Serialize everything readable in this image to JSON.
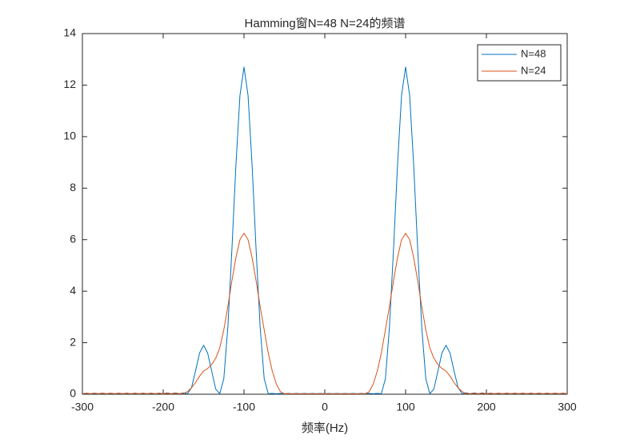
{
  "chart_data": {
    "type": "line",
    "title": "Hamming窗N=48 N=24的频谱",
    "x_label": "频率(Hz)",
    "x": [
      -300,
      -295,
      -290,
      -285,
      -280,
      -275,
      -270,
      -265,
      -260,
      -255,
      -250,
      -245,
      -240,
      -235,
      -230,
      -225,
      -220,
      -215,
      -210,
      -205,
      -200,
      -195,
      -190,
      -185,
      -180,
      -175,
      -170,
      -165,
      -160,
      -155,
      -150,
      -145,
      -140,
      -135,
      -130,
      -125,
      -120,
      -115,
      -110,
      -105,
      -100,
      -95,
      -90,
      -85,
      -80,
      -75,
      -70,
      -65,
      -60,
      -55,
      -50,
      -45,
      -40,
      -35,
      -30,
      -25,
      -20,
      -15,
      -10,
      -5,
      0,
      5,
      10,
      15,
      20,
      25,
      30,
      35,
      40,
      45,
      50,
      55,
      60,
      65,
      70,
      75,
      80,
      85,
      90,
      95,
      100,
      105,
      110,
      115,
      120,
      125,
      130,
      135,
      140,
      145,
      150,
      155,
      160,
      165,
      170,
      175,
      180,
      185,
      190,
      195,
      200,
      205,
      210,
      215,
      220,
      225,
      230,
      235,
      240,
      245,
      250,
      255,
      260,
      265,
      270,
      275,
      280,
      285,
      290,
      295,
      300
    ],
    "series": [
      {
        "name": "N=48",
        "color": "#0072BD",
        "values": [
          0.02,
          0.04,
          0.02,
          0.04,
          0.02,
          0.04,
          0.02,
          0.04,
          0.02,
          0.04,
          0.02,
          0.04,
          0.02,
          0.04,
          0.02,
          0.04,
          0.02,
          0.04,
          0.02,
          0.04,
          0.02,
          0.05,
          0.02,
          0.05,
          0.02,
          0.05,
          0.02,
          0.25,
          0.9,
          1.6,
          1.9,
          1.6,
          0.9,
          0.2,
          0.02,
          0.6,
          2.6,
          5.6,
          8.9,
          11.6,
          12.7,
          11.6,
          8.9,
          5.6,
          2.6,
          0.6,
          0.02,
          0.03,
          0.02,
          0.03,
          0.02,
          0.03,
          0.02,
          0.03,
          0.02,
          0.03,
          0.02,
          0.03,
          0.02,
          0.03,
          0.02,
          0.03,
          0.02,
          0.03,
          0.02,
          0.03,
          0.02,
          0.03,
          0.02,
          0.03,
          0.02,
          0.03,
          0.02,
          0.03,
          0.02,
          0.6,
          2.6,
          5.6,
          8.9,
          11.6,
          12.7,
          11.6,
          8.9,
          5.6,
          2.6,
          0.6,
          0.02,
          0.2,
          0.9,
          1.6,
          1.9,
          1.6,
          0.9,
          0.25,
          0.02,
          0.05,
          0.02,
          0.05,
          0.02,
          0.05,
          0.02,
          0.04,
          0.02,
          0.04,
          0.02,
          0.04,
          0.02,
          0.04,
          0.02,
          0.04,
          0.02,
          0.04,
          0.02,
          0.04,
          0.02,
          0.04,
          0.02,
          0.04,
          0.02,
          0.04,
          0.02
        ]
      },
      {
        "name": "N=24",
        "color": "#D95319",
        "values": [
          0.02,
          0.04,
          0.02,
          0.04,
          0.02,
          0.04,
          0.02,
          0.04,
          0.02,
          0.04,
          0.02,
          0.04,
          0.02,
          0.04,
          0.02,
          0.04,
          0.02,
          0.04,
          0.02,
          0.04,
          0.02,
          0.04,
          0.02,
          0.04,
          0.02,
          0.03,
          0.1,
          0.25,
          0.45,
          0.7,
          0.9,
          1.0,
          1.15,
          1.4,
          1.8,
          2.5,
          3.4,
          4.4,
          5.3,
          6.0,
          6.25,
          6.0,
          5.3,
          4.4,
          3.4,
          2.5,
          1.6,
          0.9,
          0.4,
          0.1,
          0.02,
          0.02,
          0.02,
          0.02,
          0.02,
          0.02,
          0.02,
          0.02,
          0.02,
          0.02,
          0.02,
          0.02,
          0.02,
          0.02,
          0.02,
          0.02,
          0.02,
          0.02,
          0.02,
          0.02,
          0.02,
          0.1,
          0.4,
          0.9,
          1.6,
          2.5,
          3.4,
          4.4,
          5.3,
          6.0,
          6.25,
          6.0,
          5.3,
          4.4,
          3.4,
          2.5,
          1.8,
          1.4,
          1.15,
          1.0,
          0.9,
          0.7,
          0.45,
          0.25,
          0.1,
          0.03,
          0.02,
          0.04,
          0.02,
          0.04,
          0.02,
          0.04,
          0.02,
          0.04,
          0.02,
          0.04,
          0.02,
          0.04,
          0.02,
          0.04,
          0.02,
          0.04,
          0.02,
          0.04,
          0.02,
          0.04,
          0.02,
          0.04,
          0.02,
          0.04,
          0.02
        ]
      }
    ],
    "xlim": [
      -300,
      300
    ],
    "xticks": [
      -300,
      -200,
      -100,
      0,
      100,
      200,
      300
    ],
    "ylim": [
      0,
      14
    ],
    "yticks": [
      0,
      2,
      4,
      6,
      8,
      10,
      12,
      14
    ],
    "legend": "top-right"
  }
}
